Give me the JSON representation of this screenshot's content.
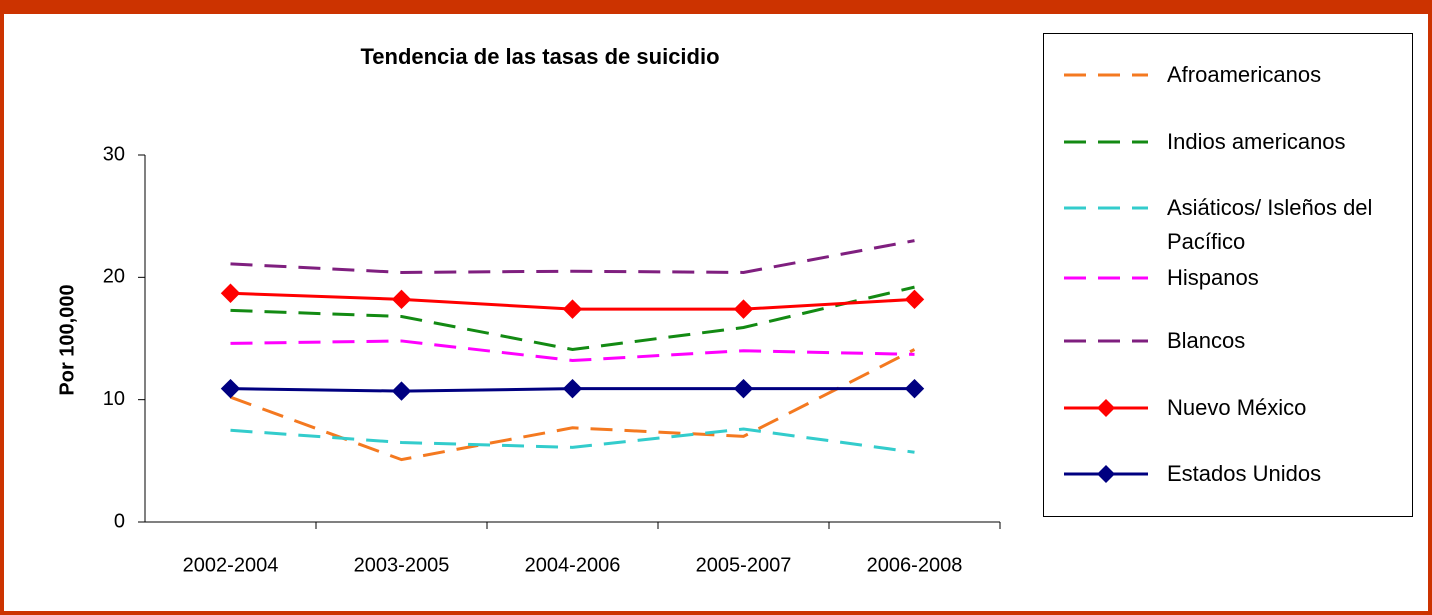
{
  "chart_data": {
    "type": "line",
    "title": "Tendencia de las tasas de suicidio",
    "y_label": "Por 100,000",
    "categories": [
      "2002-2004",
      "2003-2005",
      "2004-2006",
      "2005-2007",
      "2006-2008"
    ],
    "ylim": [
      0,
      30
    ],
    "yticks": [
      0,
      10,
      20,
      30
    ],
    "series": [
      {
        "name": "Afroamericanos",
        "color": "#f47920",
        "style": "dashed",
        "values": [
          10.2,
          5.1,
          7.7,
          7.0,
          14.1
        ]
      },
      {
        "name": "Indios americanos",
        "color": "#138a13",
        "style": "dashed",
        "values": [
          17.3,
          16.8,
          14.1,
          15.9,
          19.2
        ]
      },
      {
        "name": "Asiáticos/ Isleños del Pacífico",
        "color": "#33cccc",
        "style": "dashed",
        "values": [
          7.5,
          6.5,
          6.1,
          7.6,
          5.7
        ]
      },
      {
        "name": "Hispanos",
        "color": "#ff00ff",
        "style": "dashed",
        "values": [
          14.6,
          14.8,
          13.2,
          14.0,
          13.7
        ]
      },
      {
        "name": "Blancos",
        "color": "#7f1f7f",
        "style": "dashed",
        "values": [
          21.1,
          20.4,
          20.5,
          20.4,
          23.0
        ]
      },
      {
        "name": "Nuevo México",
        "color": "#ff0000",
        "style": "solid",
        "marker": "diamond",
        "values": [
          18.7,
          18.2,
          17.4,
          17.4,
          18.2
        ]
      },
      {
        "name": "Estados Unidos",
        "color": "#000080",
        "style": "solid",
        "marker": "diamond",
        "values": [
          10.9,
          10.7,
          10.9,
          10.9,
          10.9
        ]
      }
    ]
  }
}
